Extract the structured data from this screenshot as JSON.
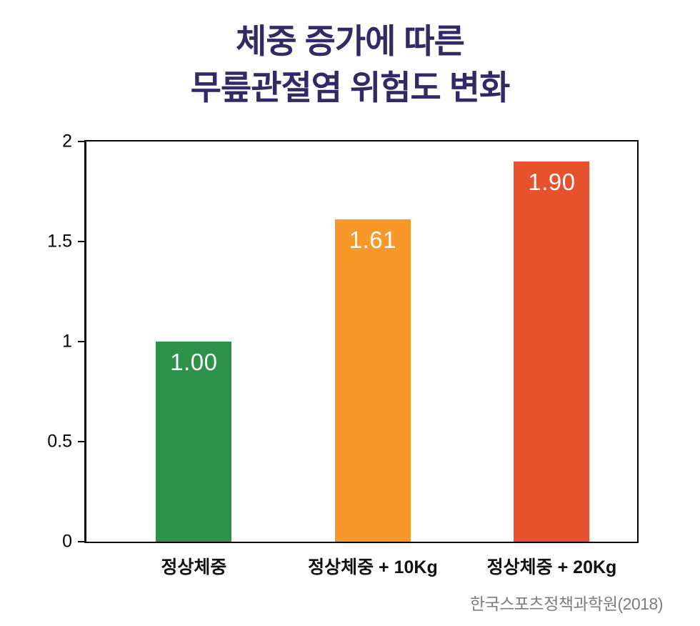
{
  "title": {
    "line1": "체중 증가에 따른",
    "line2": "무릎관절염 위험도 변화"
  },
  "source": "한국스포츠정책과학원(2018)",
  "colors": {
    "title_text": "#322a66",
    "axis": "#000000",
    "bar_value_text": "#ffffff",
    "category_text": "#111111",
    "source_text": "#7d7d7d"
  },
  "chart_data": {
    "type": "bar",
    "title": "체중 증가에 따른 무릎관절염 위험도 변화",
    "categories": [
      "정상체중",
      "정상체중 + 10Kg",
      "정상체중 + 20Kg"
    ],
    "values": [
      1.0,
      1.61,
      1.9
    ],
    "value_labels": [
      "1.00",
      "1.61",
      "1.90"
    ],
    "bar_colors": [
      "#2e9149",
      "#f8982b",
      "#e8512e"
    ],
    "xlabel": "",
    "ylabel": "",
    "ylim": [
      0,
      2
    ],
    "yticks": [
      0,
      0.5,
      1,
      1.5,
      2
    ],
    "ytick_labels": [
      "0",
      "0.5",
      "1",
      "1.5",
      "2"
    ],
    "grid": false,
    "legend": "none",
    "value_label_position": "inside-top",
    "source": "한국스포츠정책과학원(2018)"
  }
}
